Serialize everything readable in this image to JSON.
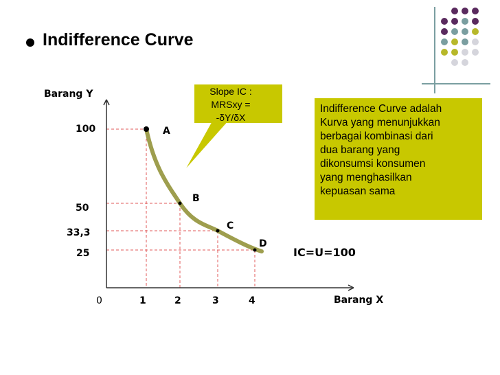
{
  "slide": {
    "title": "Indifference Curve"
  },
  "colors": {
    "curve": "#9e9e4e",
    "callout": "#c8c800",
    "guide": "#e05a5a",
    "purple": "#5a2a5e",
    "teal": "#7a9ea0",
    "olive": "#b7b82a",
    "gray": "#d5d5dc"
  },
  "callout": {
    "lines": [
      "Slope IC :",
      "MRSxy =",
      "-δY/δX"
    ]
  },
  "definition_box": {
    "lines": [
      "Indifference Curve adalah",
      "Kurva yang menunjukkan",
      "berbagai kombinasi dari",
      "dua barang yang",
      "dikonsumsi konsumen",
      "yang menghasilkan",
      "kepuasan sama"
    ]
  },
  "chart_data": {
    "type": "line",
    "xlabel": "Barang X",
    "ylabel": "Barang Y",
    "x_ticks": [
      "0",
      "1",
      "2",
      "3",
      "4"
    ],
    "y_ticks": [
      "100",
      "50",
      "33,3",
      "25"
    ],
    "curve_label": "IC=U=100",
    "points": [
      {
        "name": "A",
        "x": 1,
        "y": 100
      },
      {
        "name": "B",
        "x": 2,
        "y": 50
      },
      {
        "name": "C",
        "x": 3,
        "y": 33.3
      },
      {
        "name": "D",
        "x": 4,
        "y": 25
      }
    ]
  }
}
